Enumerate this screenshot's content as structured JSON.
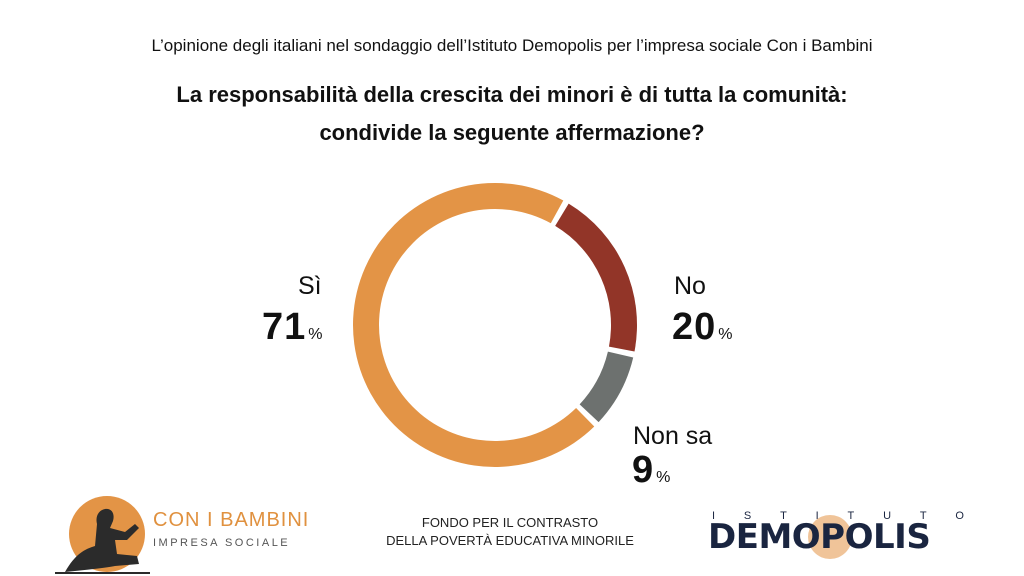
{
  "header": {
    "subtitle": "L’opinione degli italiani nel sondaggio dell’Istituto Demopolis per l’impresa sociale Con i Bambini",
    "title_line1": "La responsabilità della crescita dei minori è di tutta la comunità:",
    "title_line2": "condivide la seguente affermazione?"
  },
  "chart_data": {
    "type": "pie",
    "variant": "donut",
    "title": "La responsabilità della crescita dei minori è di tutta la comunità: condivide la seguente affermazione?",
    "unit": "%",
    "series": [
      {
        "name": "Sì",
        "value": 71,
        "color": "#e39446"
      },
      {
        "name": "No",
        "value": 20,
        "color": "#923528"
      },
      {
        "name": "Non sa",
        "value": 9,
        "color": "#6d716f"
      }
    ]
  },
  "labels": {
    "si": {
      "name": "Sì",
      "value": "71",
      "unit": "%"
    },
    "no": {
      "name": "No",
      "value": "20",
      "unit": "%"
    },
    "nonsa": {
      "name": "Non sa",
      "value": "9",
      "unit": "%"
    }
  },
  "footer": {
    "left_logo_title": "CON I BAMBINI",
    "left_logo_sub": "IMPRESA SOCIALE",
    "fondo_line1": "FONDO PER IL CONTRASTO",
    "fondo_line2": "DELLA POVERTÀ EDUCATIVA MINORILE",
    "right_logo_small": "ISTITUTO",
    "right_logo_big": "DEMOPOLIS"
  },
  "colors": {
    "orange": "#e39446",
    "red": "#923528",
    "gray": "#6d716f",
    "navy": "#1a2540"
  }
}
